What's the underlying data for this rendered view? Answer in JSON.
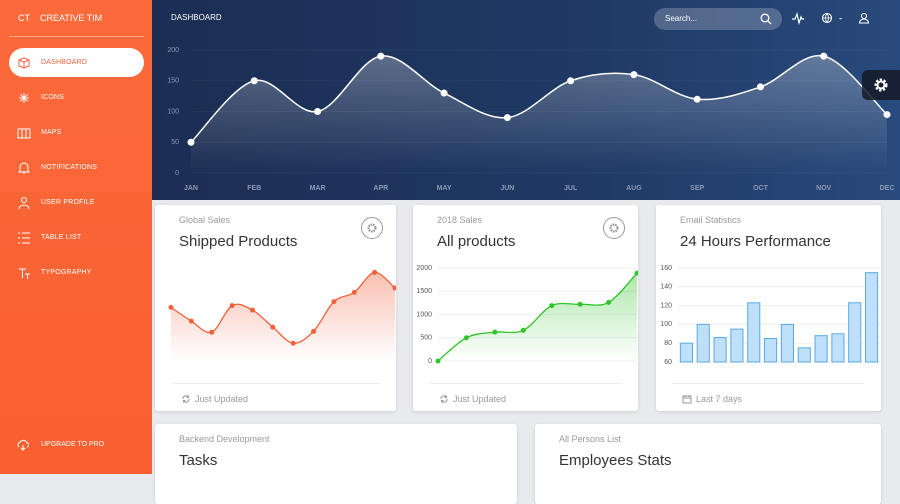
{
  "sidebar": {
    "logo": "CT",
    "brand": "CREATIVE TIM",
    "nav": [
      "DASHBOARD",
      "ICONS",
      "MAPS",
      "NOTIFICATIONS",
      "USER PROFILE",
      "TABLE LIST",
      "TYPOGRAPHY"
    ],
    "upgrade": "UPGRADE TO PRO"
  },
  "navbar": {
    "title": "DASHBOARD",
    "search_placeholder": "Search..."
  },
  "chart_data": [
    {
      "type": "line",
      "categories": [
        "JAN",
        "FEB",
        "MAR",
        "APR",
        "MAY",
        "JUN",
        "JUL",
        "AUG",
        "SEP",
        "OCT",
        "NOV",
        "DEC"
      ],
      "values": [
        50,
        150,
        100,
        190,
        130,
        90,
        150,
        160,
        120,
        140,
        190,
        95
      ],
      "ylim": [
        0,
        200
      ],
      "yticks": [
        0,
        50,
        100,
        150,
        200
      ],
      "color": "#ffffff",
      "grid": true
    },
    {
      "type": "line",
      "subtitle": "Global Sales",
      "title": "Shipped Products",
      "footer": "Just Updated",
      "values": [
        542,
        480,
        430,
        550,
        530,
        453,
        380,
        434,
        568,
        610,
        700,
        630
      ],
      "ylim": [
        300,
        720
      ],
      "color": "#f2603c"
    },
    {
      "type": "line",
      "subtitle": "2018 Sales",
      "title": "All products",
      "footer": "Just Updated",
      "values": [
        0,
        500,
        620,
        660,
        1190,
        1220,
        1260,
        1890
      ],
      "ylim": [
        0,
        2000
      ],
      "yticks": [
        0,
        500,
        1000,
        1500,
        2000
      ],
      "color": "#2fc52b",
      "grid": true
    },
    {
      "type": "bar",
      "subtitle": "Email Statistics",
      "title": "24 Hours Performance",
      "footer": "Last 7 days",
      "values": [
        80,
        100,
        86,
        95,
        123,
        85,
        100,
        75,
        88,
        90,
        123,
        155
      ],
      "ylim": [
        60,
        160
      ],
      "yticks": [
        60,
        80,
        100,
        120,
        140,
        160
      ],
      "color": "#bfe0fa",
      "border": "#5aa9e6",
      "grid": true
    }
  ],
  "cards": [
    {
      "category": "Backend Development",
      "title": "Tasks"
    },
    {
      "category": "All Persons List",
      "title": "Employees Stats"
    }
  ]
}
